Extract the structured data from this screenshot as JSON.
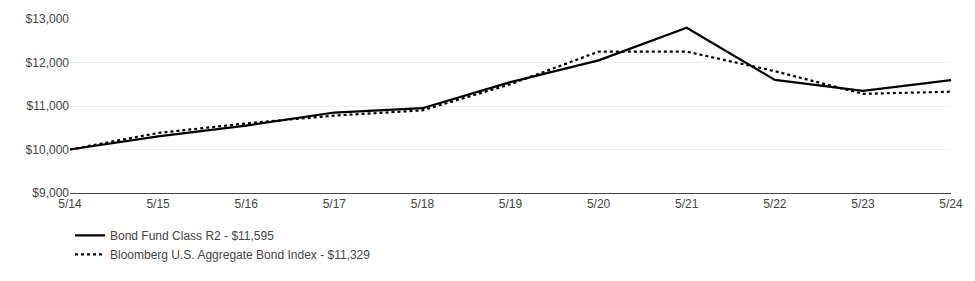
{
  "chart_data": {
    "type": "line",
    "categories": [
      "5/14",
      "5/15",
      "5/16",
      "5/17",
      "5/18",
      "5/19",
      "5/20",
      "5/21",
      "5/22",
      "5/23",
      "5/24"
    ],
    "series": [
      {
        "name": "Bond Fund Class R2 - $11,595",
        "color": "#000000",
        "line_style": "solid",
        "values": [
          10000,
          10300,
          10550,
          10850,
          10950,
          11550,
          12050,
          12800,
          11600,
          11350,
          11595
        ]
      },
      {
        "name": "Bloomberg U.S. Aggregate Bond Index - $11,329",
        "color": "#000000",
        "line_style": "dotted",
        "values": [
          10000,
          10380,
          10600,
          10780,
          10900,
          11500,
          12250,
          12250,
          11800,
          11280,
          11329
        ]
      }
    ],
    "ylim": [
      9000,
      13000
    ],
    "yticks": [
      {
        "value": 9000,
        "label": "$9,000"
      },
      {
        "value": 10000,
        "label": "$10,000"
      },
      {
        "value": 11000,
        "label": "$11,000"
      },
      {
        "value": 12000,
        "label": "$12,000"
      },
      {
        "value": 13000,
        "label": "$13,000"
      }
    ],
    "grid": true,
    "legend": "bottom"
  }
}
